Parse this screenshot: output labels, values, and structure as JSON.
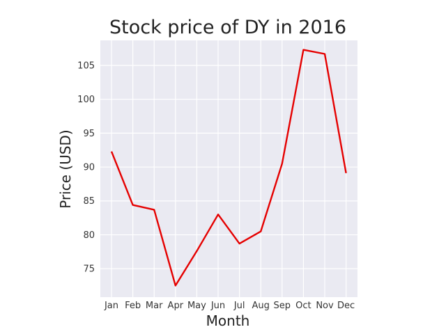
{
  "chart_data": {
    "type": "line",
    "title": "Stock price of DY in 2016",
    "xlabel": "Month",
    "ylabel": "Price (USD)",
    "categories": [
      "Jan",
      "Feb",
      "Mar",
      "Apr",
      "May",
      "Jun",
      "Jul",
      "Aug",
      "Sep",
      "Oct",
      "Nov",
      "Dec"
    ],
    "series": [
      {
        "values": [
          92.3,
          84.4,
          83.7,
          72.5,
          77.6,
          83.0,
          78.7,
          80.5,
          90.5,
          107.3,
          106.7,
          89.1
        ],
        "color": "#e50000"
      }
    ],
    "y_ticks": [
      75,
      80,
      85,
      90,
      95,
      100,
      105
    ],
    "ylim": [
      70.8,
      108.7
    ],
    "grid": true,
    "background_color": "#eaeaf2"
  }
}
